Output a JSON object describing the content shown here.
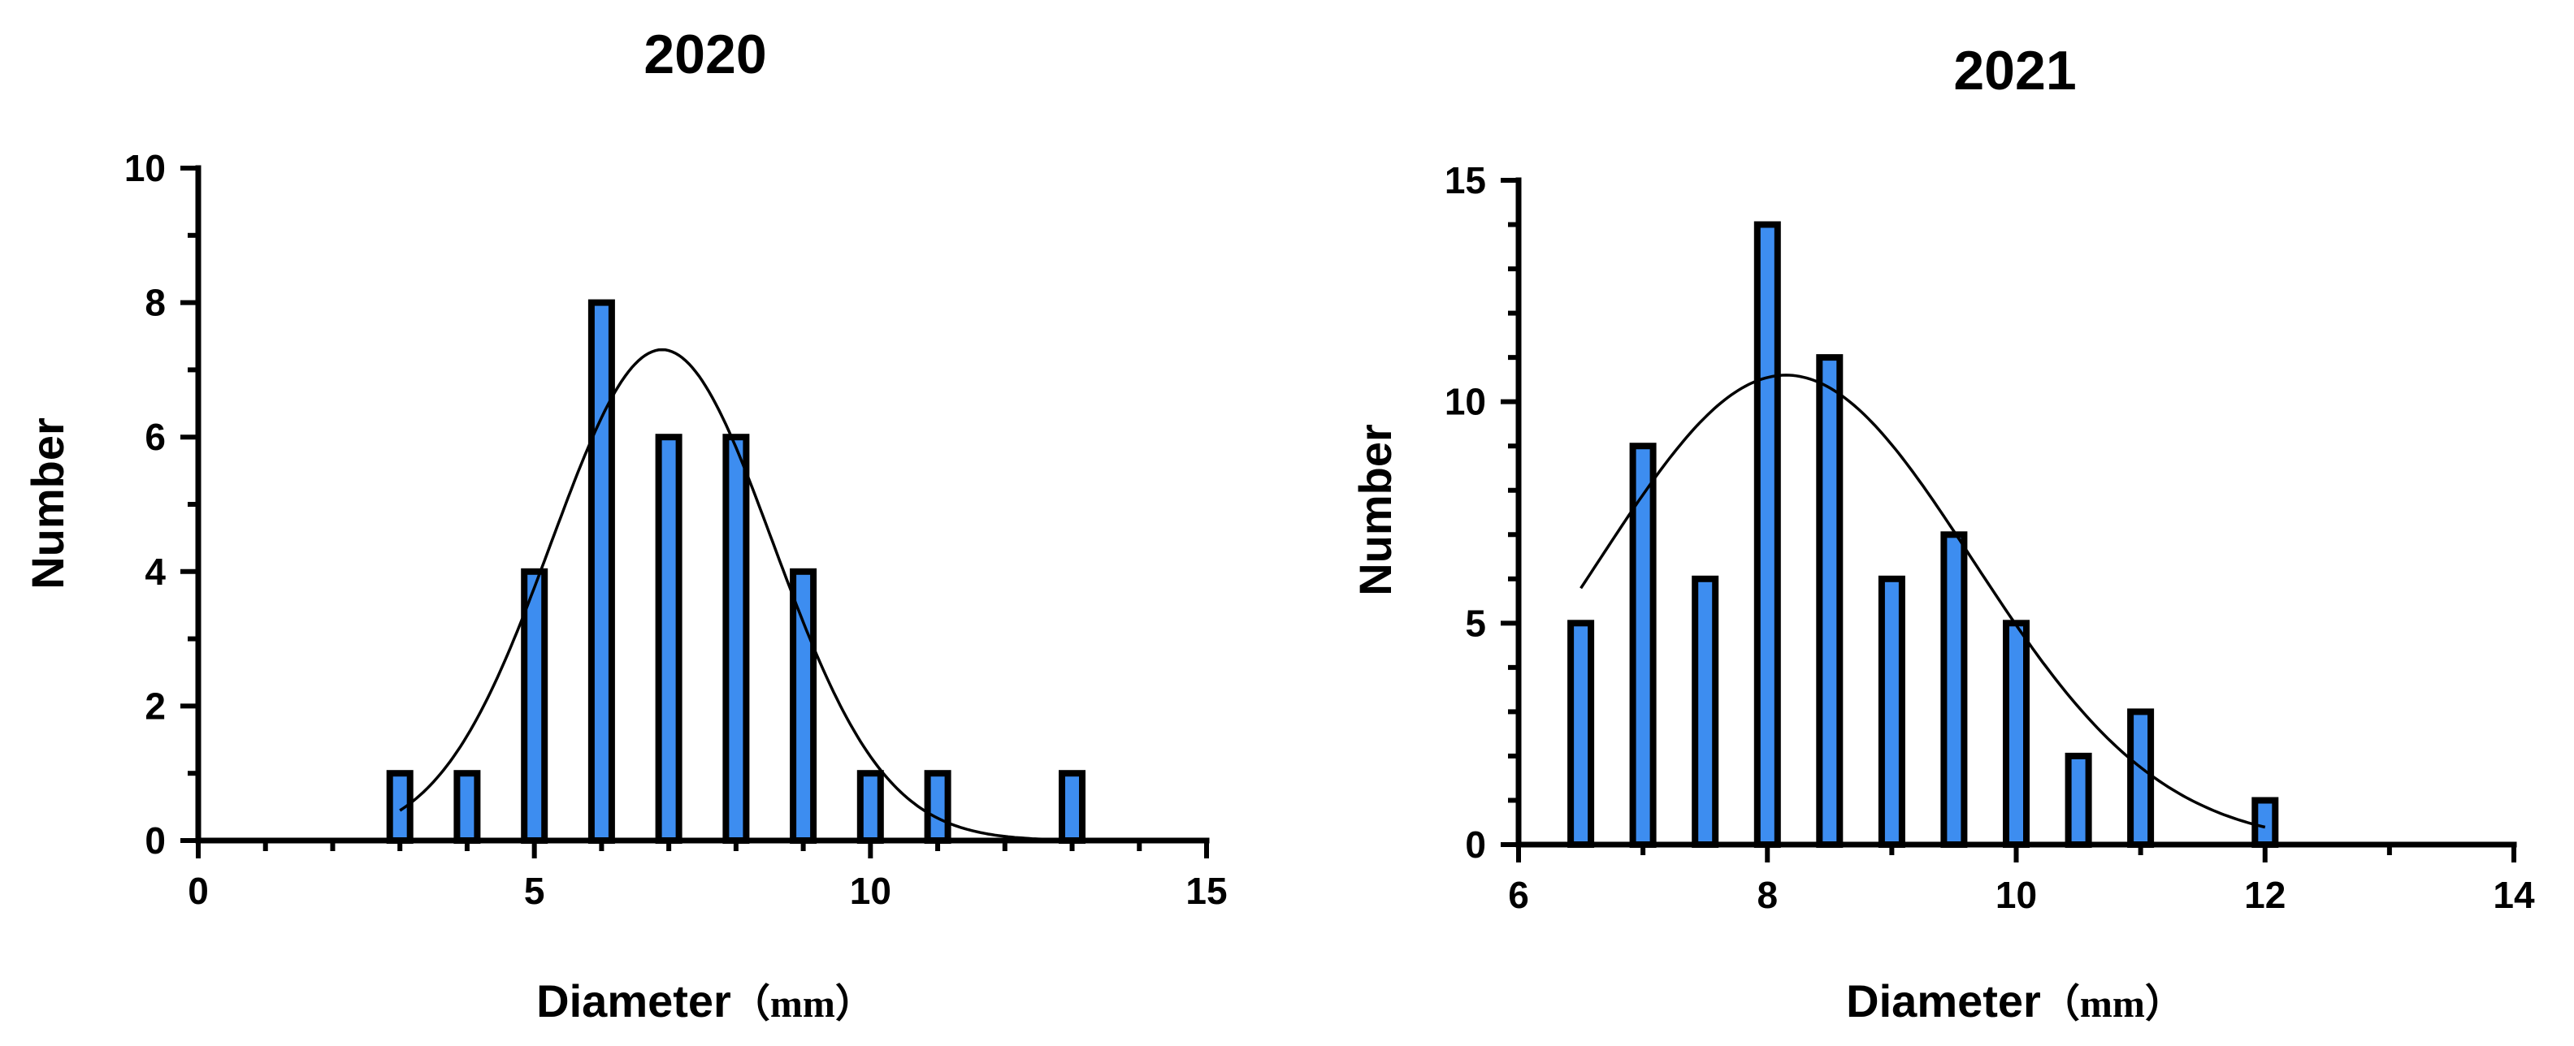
{
  "chart_data": [
    {
      "type": "bar",
      "title": "2020",
      "xlabel": "Diameter",
      "xlabel_unit": "（mm）",
      "ylabel": "Number",
      "xlim": [
        0,
        15
      ],
      "ylim": [
        0,
        10
      ],
      "x_major_ticks": [
        0,
        5,
        10,
        15
      ],
      "x_tick_labels": [
        "0",
        "5",
        "10",
        "15"
      ],
      "x_minor_step": 1,
      "y_major_ticks": [
        0,
        2,
        4,
        6,
        8,
        10
      ],
      "y_tick_labels": [
        "0",
        "2",
        "4",
        "6",
        "8",
        "10"
      ],
      "y_minor_step": 1,
      "x": [
        3,
        4,
        5,
        6,
        7,
        8,
        9,
        10,
        11,
        12,
        13
      ],
      "values": [
        1,
        1,
        4,
        8,
        6,
        6,
        4,
        1,
        1,
        0,
        1
      ],
      "bar_color": "#3d8df0",
      "fit_curve": {
        "type": "gaussian",
        "amplitude": 7.3,
        "mean": 6.9,
        "sd": 1.65,
        "x_range": [
          3,
          13
        ]
      }
    },
    {
      "type": "bar",
      "title": "2021",
      "xlabel": "Diameter",
      "xlabel_unit": "（mm）",
      "ylabel": "Number",
      "xlim": [
        6,
        14
      ],
      "ylim": [
        0,
        15
      ],
      "x_major_ticks": [
        6,
        8,
        10,
        12,
        14
      ],
      "x_tick_labels": [
        "6",
        "8",
        "10",
        "12",
        "14"
      ],
      "x_minor_step": 1,
      "y_major_ticks": [
        0,
        5,
        10,
        15
      ],
      "y_tick_labels": [
        "0",
        "5",
        "10",
        "15"
      ],
      "y_minor_step": 1,
      "x": [
        6.5,
        7,
        7.5,
        8,
        8.5,
        9,
        9.5,
        10,
        10.5,
        11,
        11.5,
        12
      ],
      "values": [
        5,
        9,
        6,
        14,
        11,
        6,
        7,
        5,
        2,
        3,
        0,
        1
      ],
      "bar_color": "#3d8df0",
      "fit_curve": {
        "type": "gaussian",
        "amplitude": 10.6,
        "mean": 8.15,
        "sd": 1.5,
        "x_range": [
          6.5,
          12
        ]
      }
    }
  ]
}
